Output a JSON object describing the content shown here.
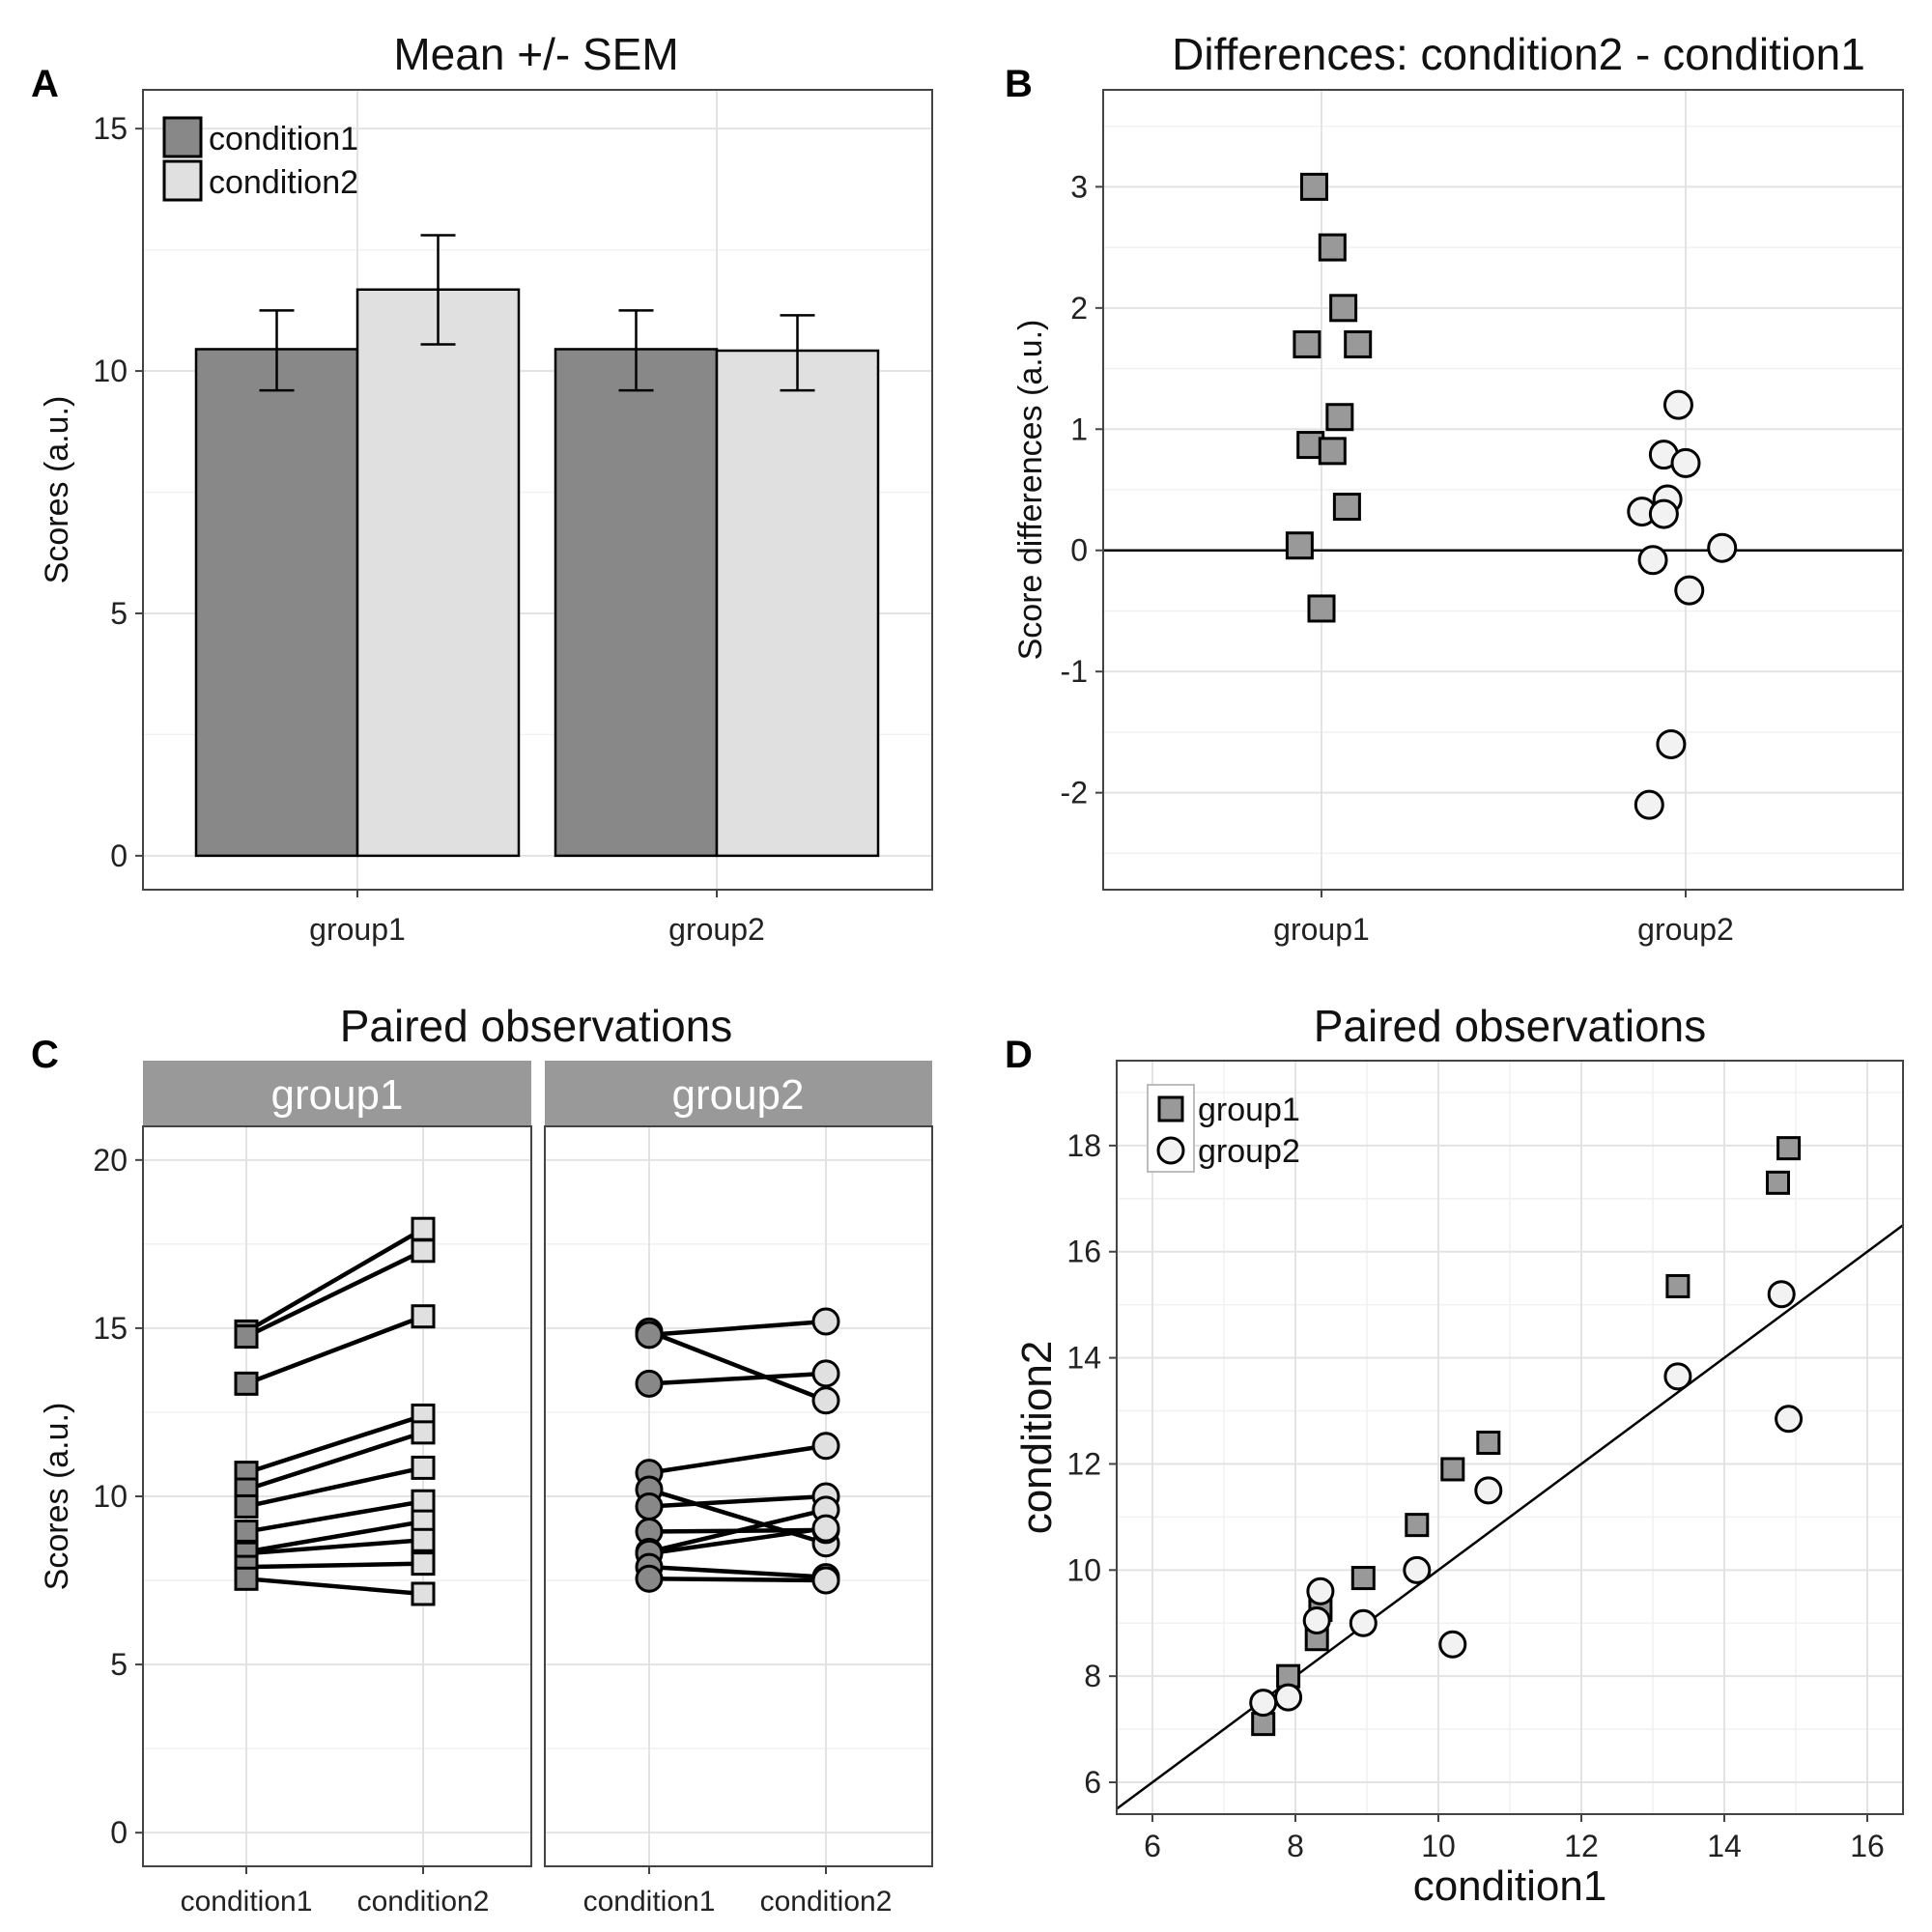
{
  "colors": {
    "condition1": "#888888",
    "condition2": "#e0e0e0",
    "group1_marker": "#999999",
    "group2_marker": "#f2f2f2",
    "strip": "#999999",
    "outline": "#000000"
  },
  "chart_data": [
    {
      "panel": "A",
      "type": "bar",
      "title": "Mean +/- SEM",
      "xlabel": "",
      "ylabel": "Scores (a.u.)",
      "ylim": [
        -0.7,
        15.8
      ],
      "yticks": [
        0,
        5,
        10,
        15
      ],
      "categories": [
        "group1",
        "group2"
      ],
      "legend": {
        "position": "top-left",
        "entries": [
          "condition1",
          "condition2"
        ]
      },
      "grid": true,
      "series": [
        {
          "name": "condition1",
          "values": [
            10.45,
            10.45
          ],
          "sem_lower": [
            9.6,
            9.6
          ],
          "sem_upper": [
            11.25,
            11.25
          ]
        },
        {
          "name": "condition2",
          "values": [
            11.68,
            10.42
          ],
          "sem_lower": [
            10.55,
            9.6
          ],
          "sem_upper": [
            12.8,
            11.15
          ]
        }
      ]
    },
    {
      "panel": "B",
      "type": "scatter",
      "title": "Differences: condition2 - condition1",
      "xlabel": "",
      "ylabel": "Score differences (a.u.)",
      "ylim": [
        -2.8,
        3.8
      ],
      "yticks": [
        -2,
        -1,
        0,
        1,
        2,
        3
      ],
      "categories": [
        "group1",
        "group2"
      ],
      "reference_line": 0,
      "grid": true,
      "series": [
        {
          "name": "group1",
          "marker": "square",
          "x": [
            "group1",
            "group1",
            "group1",
            "group1",
            "group1",
            "group1",
            "group1",
            "group1",
            "group1",
            "group1",
            "group1"
          ],
          "jitter": [
            -0.02,
            0.03,
            0.06,
            -0.04,
            0.1,
            0.05,
            -0.03,
            0.03,
            0.07,
            -0.06,
            0.0
          ],
          "values": [
            3.0,
            2.5,
            2.0,
            1.7,
            1.7,
            1.1,
            0.87,
            0.82,
            0.36,
            0.04,
            -0.48
          ]
        },
        {
          "name": "group2",
          "marker": "circle",
          "x": [
            "group2",
            "group2",
            "group2",
            "group2",
            "group2",
            "group2",
            "group2",
            "group2",
            "group2",
            "group2",
            "group2"
          ],
          "jitter": [
            -0.02,
            -0.06,
            0.0,
            -0.05,
            -0.12,
            -0.06,
            0.1,
            -0.09,
            0.01,
            -0.04,
            -0.1
          ],
          "values": [
            1.2,
            0.79,
            0.72,
            0.42,
            0.32,
            0.3,
            0.02,
            -0.08,
            -0.33,
            -1.6,
            -2.1
          ]
        }
      ]
    },
    {
      "panel": "C",
      "type": "line",
      "title": "Paired observations",
      "xlabel": "",
      "ylabel": "Scores (a.u.)",
      "ylim": [
        -1,
        21
      ],
      "yticks": [
        0,
        5,
        10,
        15,
        20
      ],
      "categories": [
        "condition1",
        "condition2"
      ],
      "grid": true,
      "facets": [
        {
          "name": "group1",
          "marker": "square",
          "pairs": [
            [
              14.9,
              17.95
            ],
            [
              14.75,
              17.3
            ],
            [
              13.35,
              15.35
            ],
            [
              10.7,
              12.4
            ],
            [
              10.2,
              11.9
            ],
            [
              9.7,
              10.85
            ],
            [
              8.95,
              9.85
            ],
            [
              8.35,
              9.25
            ],
            [
              8.3,
              8.7
            ],
            [
              7.9,
              8.0
            ],
            [
              7.55,
              7.1
            ]
          ]
        },
        {
          "name": "group2",
          "marker": "circle",
          "pairs": [
            [
              14.9,
              12.85
            ],
            [
              14.8,
              15.2
            ],
            [
              13.35,
              13.65
            ],
            [
              10.7,
              11.5
            ],
            [
              10.2,
              8.6
            ],
            [
              9.7,
              10.0
            ],
            [
              8.95,
              9.0
            ],
            [
              8.35,
              9.6
            ],
            [
              8.3,
              9.05
            ],
            [
              7.9,
              7.6
            ],
            [
              7.55,
              7.5
            ]
          ]
        }
      ]
    },
    {
      "panel": "D",
      "type": "scatter",
      "title": "Paired observations",
      "xlabel": "condition1",
      "ylabel": "condition2",
      "xlim": [
        5.5,
        16.5
      ],
      "ylim": [
        5.4,
        19.6
      ],
      "xticks": [
        6,
        8,
        10,
        12,
        14,
        16
      ],
      "yticks": [
        6,
        8,
        10,
        12,
        14,
        16,
        18
      ],
      "reference_line": "y = x",
      "legend": {
        "position": "top-left",
        "entries": [
          "group1",
          "group2"
        ]
      },
      "grid": true,
      "series": [
        {
          "name": "group1",
          "marker": "square",
          "x": [
            7.55,
            7.9,
            8.3,
            8.35,
            8.95,
            9.7,
            10.2,
            10.7,
            13.35,
            14.75,
            14.9
          ],
          "y": [
            7.1,
            8.0,
            8.7,
            9.25,
            9.85,
            10.85,
            11.9,
            12.4,
            15.35,
            17.3,
            17.95
          ]
        },
        {
          "name": "group2",
          "marker": "circle",
          "x": [
            7.55,
            7.9,
            8.3,
            8.35,
            8.95,
            9.7,
            10.2,
            10.7,
            13.35,
            14.8,
            14.9
          ],
          "y": [
            7.5,
            7.6,
            9.05,
            9.6,
            9.0,
            10.0,
            8.6,
            11.5,
            13.65,
            15.2,
            12.85
          ]
        }
      ]
    }
  ],
  "panel_letters": [
    "A",
    "B",
    "C",
    "D"
  ]
}
